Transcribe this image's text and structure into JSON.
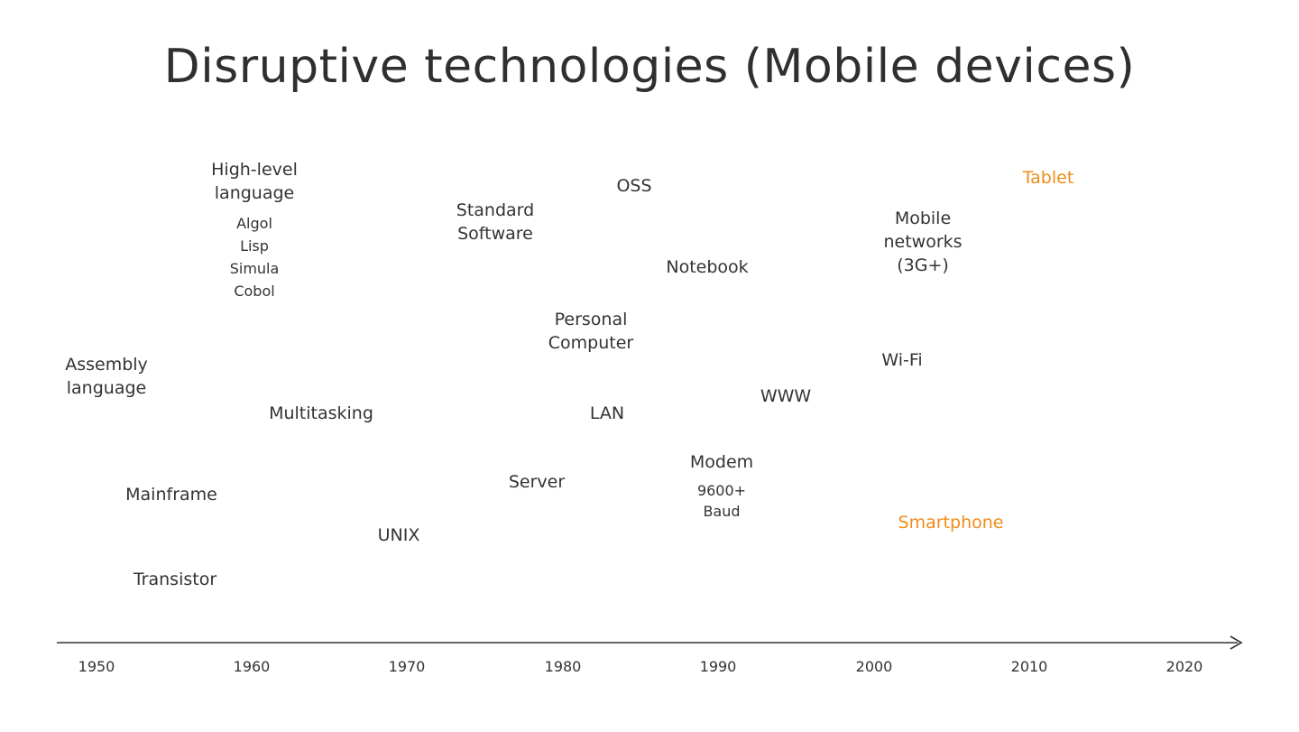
{
  "title": "Disruptive technologies (Mobile devices)",
  "accent_color": "#f08c1a",
  "axis": {
    "ticks": [
      "1950",
      "1960",
      "1970",
      "1980",
      "1990",
      "2000",
      "2010",
      "2020"
    ]
  },
  "labels": {
    "high_level_language": "High-level\nlanguage",
    "algol": "Algol",
    "lisp": "Lisp",
    "simula": "Simula",
    "cobol": "Cobol",
    "standard_software": "Standard\nSoftware",
    "oss": "OSS",
    "tablet": "Tablet",
    "mobile_networks": "Mobile\nnetworks\n(3G+)",
    "notebook": "Notebook",
    "personal_computer": "Personal\nComputer",
    "assembly_language": "Assembly\nlanguage",
    "wifi": "Wi-Fi",
    "www": "WWW",
    "multitasking": "Multitasking",
    "lan": "LAN",
    "modem": "Modem",
    "baud": "9600+\nBaud",
    "server": "Server",
    "mainframe": "Mainframe",
    "smartphone": "Smartphone",
    "unix": "UNIX",
    "transistor": "Transistor"
  }
}
